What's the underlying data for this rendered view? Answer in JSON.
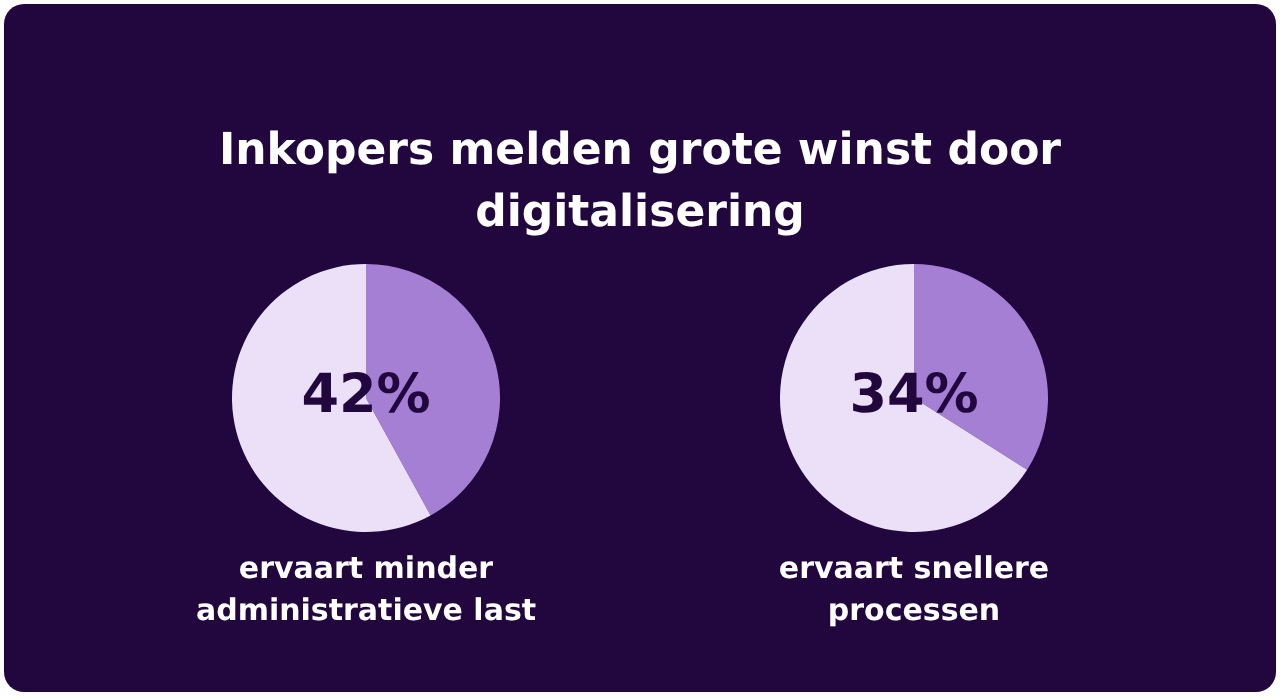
{
  "chart_data": [
    {
      "type": "pie",
      "title": "Inkopers melden grote winst door digitalisering",
      "categories": [
        null,
        null
      ],
      "values": [
        42,
        58
      ],
      "value_labels": [
        "42%",
        null
      ],
      "colors": [
        "#a57fd3",
        "#ece0f8"
      ],
      "annotations": [
        "ervaart minder administratieve last"
      ]
    },
    {
      "type": "pie",
      "categories": [
        null,
        null
      ],
      "values": [
        34,
        66
      ],
      "value_labels": [
        "34%",
        null
      ],
      "colors": [
        "#a57fd3",
        "#ece0f8"
      ],
      "annotations": [
        "ervaart snellere processen"
      ]
    }
  ]
}
